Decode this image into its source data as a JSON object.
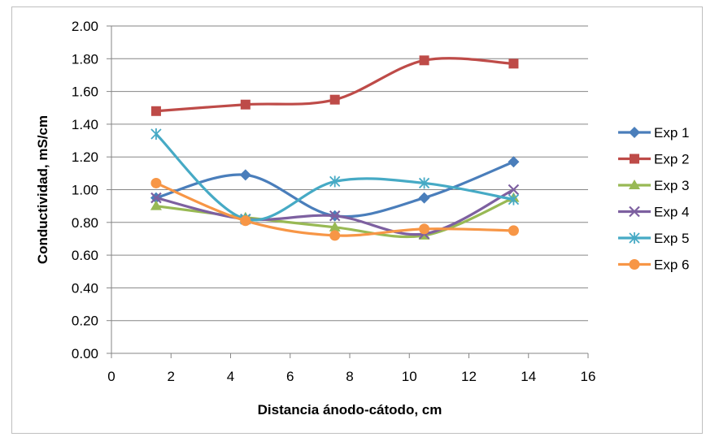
{
  "chart_data": {
    "type": "line",
    "xlabel": "Distancia ánodo-cátodo, cm",
    "ylabel": "Conductividad, mS/cm",
    "xlim": [
      0,
      16
    ],
    "ylim": [
      0,
      2.0
    ],
    "x_ticks": [
      "0",
      "2",
      "4",
      "6",
      "8",
      "10",
      "12",
      "14",
      "16"
    ],
    "y_ticks": [
      "0.00",
      "0.20",
      "0.40",
      "0.60",
      "0.80",
      "1.00",
      "1.20",
      "1.40",
      "1.60",
      "1.80",
      "2.00"
    ],
    "grid": "horizontal",
    "legend_position": "right",
    "x": [
      1.5,
      4.5,
      7.5,
      10.5,
      13.5
    ],
    "series": [
      {
        "name": "Exp 1",
        "color": "#4a7ebb",
        "marker": "diamond",
        "values": [
          0.95,
          1.09,
          0.84,
          0.95,
          1.17
        ]
      },
      {
        "name": "Exp 2",
        "color": "#be4b48",
        "marker": "square",
        "values": [
          1.48,
          1.52,
          1.55,
          1.79,
          1.77
        ]
      },
      {
        "name": "Exp 3",
        "color": "#98b954",
        "marker": "triangle",
        "values": [
          0.9,
          0.83,
          0.77,
          0.72,
          0.95
        ]
      },
      {
        "name": "Exp 4",
        "color": "#7d60a0",
        "marker": "x",
        "values": [
          0.95,
          0.82,
          0.84,
          0.73,
          1.0
        ]
      },
      {
        "name": "Exp 5",
        "color": "#46aac5",
        "marker": "star",
        "values": [
          1.34,
          0.82,
          1.05,
          1.04,
          0.94
        ]
      },
      {
        "name": "Exp 6",
        "color": "#f79646",
        "marker": "circle",
        "values": [
          1.04,
          0.81,
          0.72,
          0.76,
          0.75
        ]
      }
    ]
  }
}
